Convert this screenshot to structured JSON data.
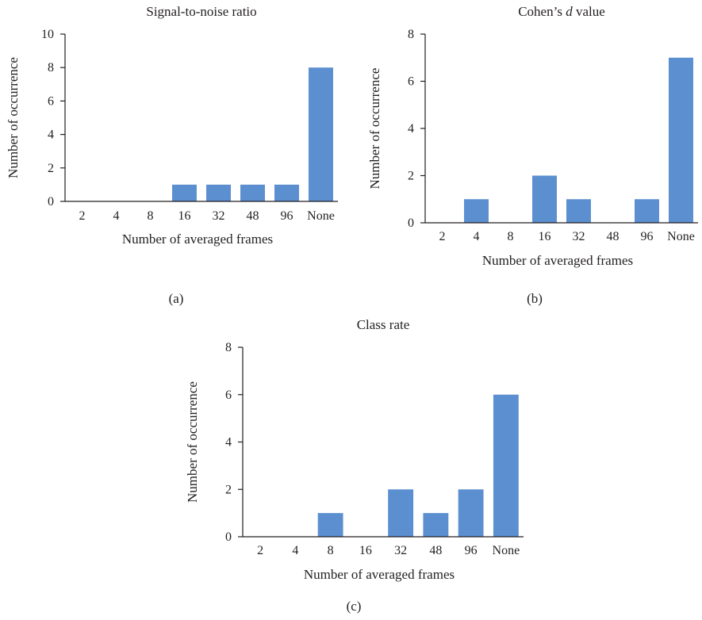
{
  "chart_data": [
    {
      "type": "bar",
      "title": "Signal-to-noise ratio",
      "title_parts": [
        {
          "text": "Signal-to-noise ratio",
          "italic": false
        }
      ],
      "xlabel": "Number of averaged frames",
      "ylabel": "Number of occurrence",
      "panel_label": "(a)",
      "categories": [
        "2",
        "4",
        "8",
        "16",
        "32",
        "48",
        "96",
        "None"
      ],
      "values": [
        0,
        0,
        0,
        1,
        1,
        1,
        1,
        8
      ],
      "ylim": [
        0,
        10
      ],
      "yticks": [
        0,
        2,
        4,
        6,
        8,
        10
      ],
      "bar_color": "#5b8fd0",
      "grid": false
    },
    {
      "type": "bar",
      "title": "Cohen’s d value",
      "title_parts": [
        {
          "text": "Cohen’s ",
          "italic": false
        },
        {
          "text": "d",
          "italic": true
        },
        {
          "text": " value",
          "italic": false
        }
      ],
      "xlabel": "Number of averaged frames",
      "ylabel": "Number of occurrence",
      "panel_label": "(b)",
      "categories": [
        "2",
        "4",
        "8",
        "16",
        "32",
        "48",
        "96",
        "None"
      ],
      "values": [
        0,
        1,
        0,
        2,
        1,
        0,
        1,
        7
      ],
      "ylim": [
        0,
        8
      ],
      "yticks": [
        0,
        2,
        4,
        6,
        8
      ],
      "bar_color": "#5b8fd0",
      "grid": false
    },
    {
      "type": "bar",
      "title": "Class rate",
      "title_parts": [
        {
          "text": "Class rate",
          "italic": false
        }
      ],
      "xlabel": "Number of averaged frames",
      "ylabel": "Number of occurrence",
      "panel_label": "(c)",
      "categories": [
        "2",
        "4",
        "8",
        "16",
        "32",
        "48",
        "96",
        "None"
      ],
      "values": [
        0,
        0,
        1,
        0,
        2,
        1,
        2,
        6
      ],
      "ylim": [
        0,
        8
      ],
      "yticks": [
        0,
        2,
        4,
        6,
        8
      ],
      "bar_color": "#5b8fd0",
      "grid": false
    }
  ]
}
